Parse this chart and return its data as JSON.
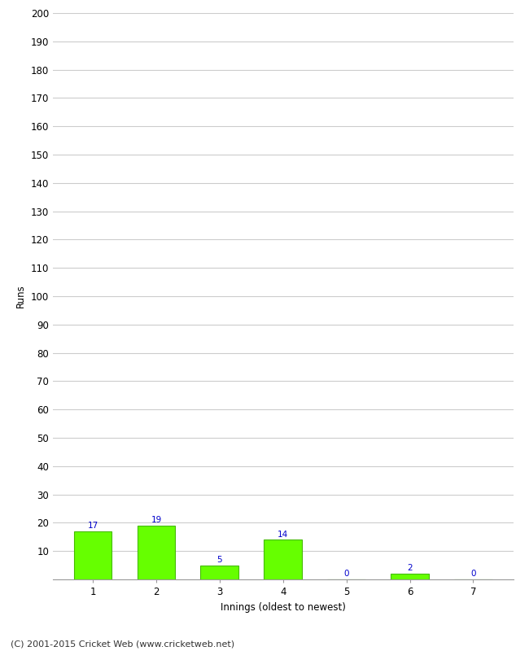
{
  "categories": [
    "1",
    "2",
    "3",
    "4",
    "5",
    "6",
    "7"
  ],
  "values": [
    17,
    19,
    5,
    14,
    0,
    2,
    0
  ],
  "bar_color": "#66ff00",
  "bar_edge_color": "#44bb00",
  "value_color": "#0000cc",
  "ylabel": "Runs",
  "xlabel": "Innings (oldest to newest)",
  "ylim": [
    0,
    200
  ],
  "yticks": [
    0,
    10,
    20,
    30,
    40,
    50,
    60,
    70,
    80,
    90,
    100,
    110,
    120,
    130,
    140,
    150,
    160,
    170,
    180,
    190,
    200
  ],
  "footer": "(C) 2001-2015 Cricket Web (www.cricketweb.net)",
  "background_color": "#ffffff",
  "grid_color": "#cccccc",
  "value_fontsize": 7.5,
  "axis_fontsize": 8.5,
  "label_fontsize": 8.5,
  "footer_fontsize": 8
}
